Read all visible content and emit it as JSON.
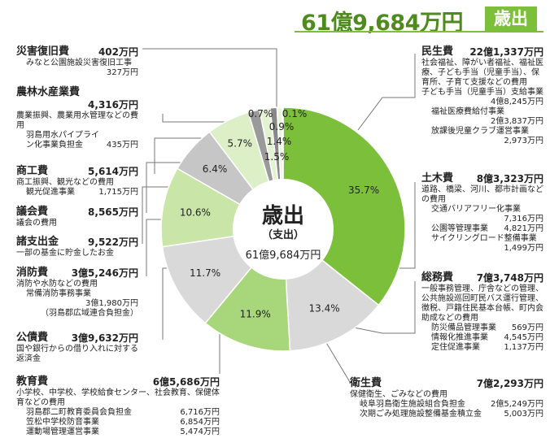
{
  "header": {
    "total": "61億9,684万円",
    "badge": "歳出"
  },
  "center": {
    "title": "歳出",
    "subtitle": "（支出）",
    "total": "61億9,684万円"
  },
  "chart_data": {
    "type": "pie",
    "slices": [
      {
        "label": "民生費",
        "value": 35.7,
        "pct": "35.7%",
        "color": "#7bbf3a"
      },
      {
        "label": "土木費",
        "value": 13.4,
        "pct": "13.4%",
        "color": "#d9d9d9"
      },
      {
        "label": "総務費",
        "value": 11.9,
        "pct": "11.9%",
        "color": "#a8d67a"
      },
      {
        "label": "衛生費",
        "value": 11.7,
        "pct": "11.7%",
        "color": "#d9d9d9"
      },
      {
        "label": "教育費",
        "value": 10.6,
        "pct": "10.6%",
        "color": "#c9e6a8"
      },
      {
        "label": "公債費",
        "value": 6.4,
        "pct": "6.4%",
        "color": "#c6c6c6"
      },
      {
        "label": "消防費",
        "value": 5.7,
        "pct": "5.7%",
        "color": "#dcefc6"
      },
      {
        "label": "諸支出金",
        "value": 1.5,
        "pct": "1.5%",
        "color": "#9a9a9a"
      },
      {
        "label": "議会費",
        "value": 1.4,
        "pct": "1.4%",
        "color": "#e4f2d4"
      },
      {
        "label": "商工費",
        "value": 0.9,
        "pct": "0.9%",
        "color": "#888888"
      },
      {
        "label": "農林水産業費",
        "value": 0.7,
        "pct": "0.7%",
        "color": "#eaf5de"
      },
      {
        "label": "災害復旧費",
        "value": 0.1,
        "pct": "0.1%",
        "color": "#777777"
      }
    ]
  },
  "items": {
    "minsei": {
      "name": "民生費",
      "amount": "22億1,337万円",
      "desc": "社会福祉、障がい者福祉、福祉医療、子ども手当（児童手当）、保育所、子育て支援などの費用",
      "subs": [
        {
          "name": "子ども手当（児童手当）支給事業",
          "amount": "4億8,245万円"
        },
        {
          "name": "福祉医療費給付事業",
          "amount": "2億3,837万円"
        },
        {
          "name": "放課後児童クラブ運営事業",
          "amount": "2,973万円"
        }
      ]
    },
    "doboku": {
      "name": "土木費",
      "amount": "8億3,323万円",
      "desc": "道路、橋梁、河川、都市計画などの費用",
      "subs": [
        {
          "name": "交通バリアフリー化事業",
          "amount": "7,316万円"
        },
        {
          "name": "公園等管理事業",
          "amount": "4,821万円"
        },
        {
          "name": "サイクリングロード整備事業",
          "amount": "1,499万円"
        }
      ]
    },
    "somu": {
      "name": "総務費",
      "amount": "7億3,748万円",
      "desc": "一般事務管理、庁舎などの管理、公共施設巡回町民バス運行管理、徴税、戸籍住民基本台帳、町内会助成などの費用",
      "subs": [
        {
          "name": "防災備品管理事業",
          "amount": "569万円"
        },
        {
          "name": "情報化推進事業",
          "amount": "4,545万円"
        },
        {
          "name": "定住促進事業",
          "amount": "1,137万円"
        }
      ]
    },
    "eisei": {
      "name": "衛生費",
      "amount": "7億2,293万円",
      "desc": "保健衛生、ごみなどの費用",
      "subs": [
        {
          "name": "岐阜羽島衛生施設組合負担金",
          "amount": "2億5,249万円"
        },
        {
          "name": "次期ごみ処理施設整備基金積立金",
          "amount": "5,003万円"
        }
      ]
    },
    "saigai": {
      "name": "災害復旧費",
      "amount": "402万円",
      "desc": "みなと公園施設災害復旧工事",
      "sub_amount": "327万円"
    },
    "norin": {
      "name": "農林水産業費",
      "amount": "4,316万円",
      "desc": "農業振興、農業用水管理などの費用",
      "sub_name": "羽島用水パイプライン化事業負担金",
      "sub_amount": "435万円"
    },
    "shoko": {
      "name": "商工費",
      "amount": "5,614万円",
      "desc": "商工振興、観光などの費用",
      "sub_name": "観光促進事業",
      "sub_amount": "1,715万円"
    },
    "gikai": {
      "name": "議会費",
      "amount": "8,565万円",
      "desc": "議会の費用"
    },
    "shoshi": {
      "name": "諸支出金",
      "amount": "9,522万円",
      "desc": "一部の基金に貯金したお金"
    },
    "shobo": {
      "name": "消防費",
      "amount": "3億5,246万円",
      "desc": "消防や水防などの費用",
      "sub_name": "常備消防事務事業",
      "sub_amount": "3億1,980万円",
      "sub_note": "（羽島郡広域連合負担金）"
    },
    "kosai": {
      "name": "公債費",
      "amount": "3億9,632万円",
      "desc": "国や銀行からの借り入れに対する返済金"
    },
    "kyoiku": {
      "name": "教育費",
      "amount": "6億5,686万円",
      "desc": "小学校、中学校、学校給食センター、社会教育、保健体育などの費用",
      "subs": [
        {
          "name": "羽島郡二町教育委員会負担金",
          "amount": "6,716万円"
        },
        {
          "name": "笠松中学校防音事業",
          "amount": "6,854万円"
        },
        {
          "name": "運動場管理運営事業",
          "amount": "5,474万円"
        }
      ]
    }
  }
}
